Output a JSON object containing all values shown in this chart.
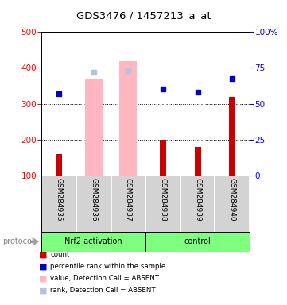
{
  "title": "GDS3476 / 1457213_a_at",
  "samples": [
    "GSM284935",
    "GSM284936",
    "GSM284937",
    "GSM284938",
    "GSM284939",
    "GSM284940"
  ],
  "group_labels": [
    "Nrf2 activation",
    "control"
  ],
  "red_bars": [
    160,
    null,
    null,
    200,
    180,
    320
  ],
  "pink_bars": [
    null,
    370,
    418,
    null,
    null,
    null
  ],
  "blue_squares": [
    328,
    388,
    393,
    342,
    333,
    370
  ],
  "blue_square_absent": [
    false,
    true,
    true,
    false,
    false,
    false
  ],
  "left_ylim": [
    100,
    500
  ],
  "right_ylim": [
    0,
    100
  ],
  "left_yticks": [
    100,
    200,
    300,
    400,
    500
  ],
  "right_yticks": [
    0,
    25,
    50,
    75,
    100
  ],
  "right_yticklabels": [
    "0",
    "25",
    "50",
    "75",
    "100%"
  ],
  "dotted_lines": [
    200,
    300,
    400,
    500
  ],
  "legend_colors": [
    "#CC0000",
    "#0000CC",
    "#FFB6C1",
    "#B0C4DE"
  ],
  "legend_labels": [
    "count",
    "percentile rank within the sample",
    "value, Detection Call = ABSENT",
    "rank, Detection Call = ABSENT"
  ]
}
